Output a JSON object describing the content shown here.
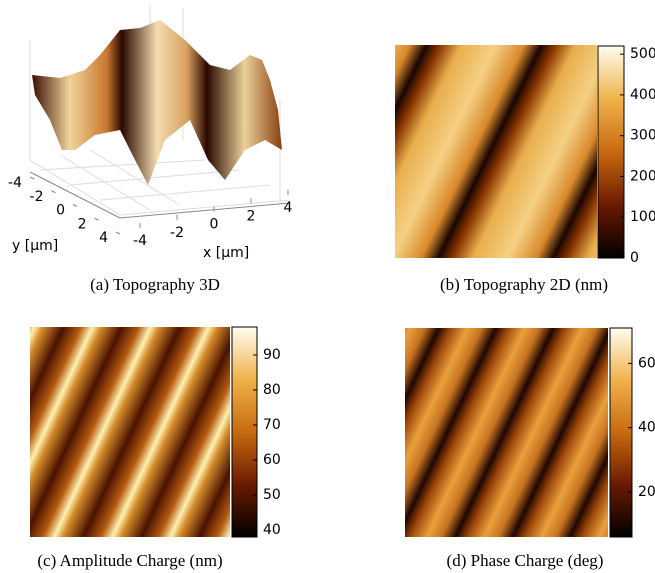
{
  "panels": [
    {
      "caption": "(a) Topography 3D",
      "xlabel": "x [μm]",
      "ylabel": "y [μm]",
      "xticks": [
        -4,
        -2,
        0,
        2,
        4
      ],
      "yticks": [
        -4,
        -2,
        0,
        2,
        4
      ]
    },
    {
      "caption": "(b) Topography 2D (nm)",
      "colorbar": {
        "lim": [
          0,
          520
        ],
        "ticks": [
          0,
          100,
          200,
          300,
          400,
          500
        ]
      }
    },
    {
      "caption": "(c) Amplitude Charge (nm)",
      "colorbar": {
        "lim": [
          38,
          98
        ],
        "ticks": [
          40,
          50,
          60,
          70,
          80,
          90
        ]
      }
    },
    {
      "caption": "(d) Phase Charge (deg)",
      "colorbar": {
        "lim": [
          6,
          71
        ],
        "ticks": [
          20,
          40,
          60
        ]
      }
    }
  ]
}
